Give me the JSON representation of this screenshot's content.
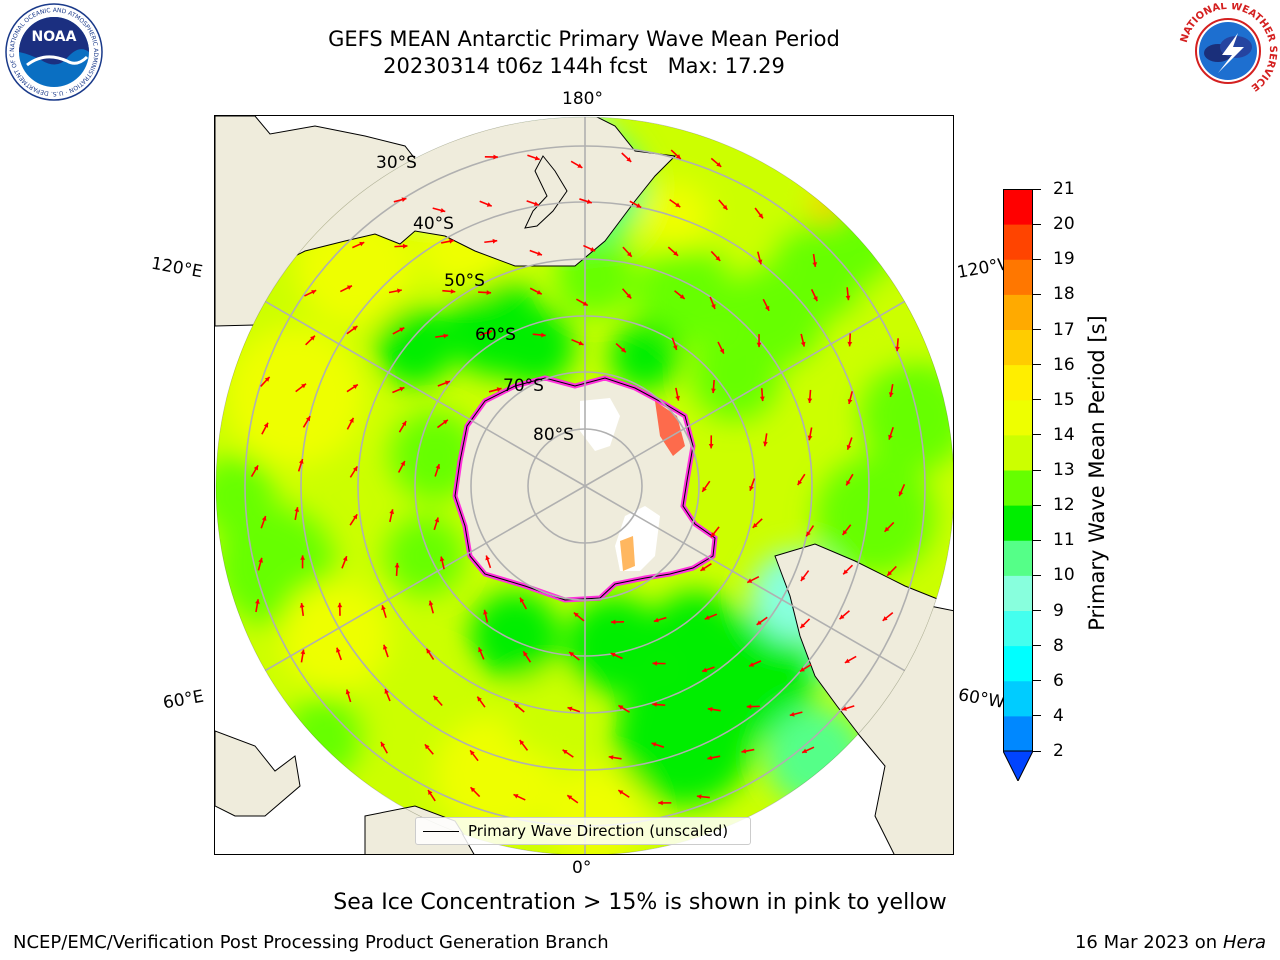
{
  "header": {
    "title_line1": "GEFS MEAN Antarctic Primary Wave Mean Period",
    "title_line2": "20230314 t06z 144h fcst   Max: 17.29"
  },
  "logos": {
    "left": {
      "name": "NOAA",
      "text": "NOAA",
      "ring_text": "NATIONAL OCEANIC AND ATMOSPHERIC ADMINISTRATION · U.S. DEPARTMENT OF COMMERCE"
    },
    "right": {
      "name": "National Weather Service",
      "ring_text": "NATIONAL WEATHER SERVICE"
    }
  },
  "map": {
    "projection": "south-polar-stereographic",
    "grid_labels": {
      "lon_top": "180°",
      "lon_bottom": "0°",
      "lon_upper_left": "120°E",
      "lon_upper_right": "120°W",
      "lon_lower_left": "60°E",
      "lon_lower_right": "60°W",
      "lat": [
        "30°S",
        "40°S",
        "50°S",
        "60°S",
        "70°S",
        "80°S"
      ]
    },
    "colors": {
      "land": "#efecdc",
      "ice_edge": "#ff33dd",
      "arrows": "#ff0000",
      "grid": "#b0b0b0"
    }
  },
  "colorbar": {
    "label": "Primary Wave Mean Period [s]",
    "ticks": [
      "2",
      "4",
      "6",
      "8",
      "9",
      "10",
      "11",
      "12",
      "13",
      "14",
      "15",
      "16",
      "17",
      "18",
      "19",
      "20",
      "21"
    ],
    "colors": [
      "#0044ff",
      "#0088ff",
      "#00ccff",
      "#00ffff",
      "#44ffee",
      "#88ffdd",
      "#55ff88",
      "#00ee00",
      "#66ff00",
      "#ccff00",
      "#eeff00",
      "#ffee00",
      "#ffcc00",
      "#ffaa00",
      "#ff7700",
      "#ff4400",
      "#ff0000"
    ],
    "extend": "min"
  },
  "legend": {
    "label": "Primary Wave Direction (unscaled)"
  },
  "footer": {
    "note": "Sea Ice Concentration > 15% is shown in pink to yellow",
    "left": "NCEP/EMC/Verification Post Processing Product Generation Branch",
    "right_date": "16 Mar 2023 on",
    "right_host": "Hera"
  }
}
